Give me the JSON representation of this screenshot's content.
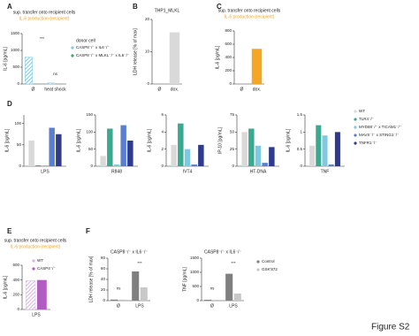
{
  "figure_label": "Figure S2",
  "chart_data": [
    {
      "type": "bar",
      "panel": "A",
      "title": "sup. transfer onto recipient cells",
      "subtitle": "IL-6 production (recipient)",
      "ylabel": "IL-6 [pg/mL]",
      "categories": [
        "Ø",
        "heat shock"
      ],
      "legend_title": "donor cell",
      "series": [
        {
          "name": "CASP8⁻/⁻ x IL6⁻/⁻",
          "color": "#7ec8e3",
          "hatch": true,
          "values": [
            800,
            30
          ]
        },
        {
          "name": "CASP8⁻/⁻ x MLKL⁻/⁻ x IL6⁻/⁻",
          "color": "#3aaa5c",
          "values": [
            5,
            5
          ]
        }
      ],
      "ylim": [
        0,
        1500
      ],
      "yticks": [
        0,
        500,
        1000,
        1500
      ],
      "annotations": [
        "***",
        "ns"
      ]
    },
    {
      "type": "bar",
      "panel": "B",
      "title": "THP1_MLKL",
      "ylabel": "LDH release [% of max]",
      "categories": [
        "Ø",
        "dox."
      ],
      "series": [
        {
          "color": "#d9d9d9",
          "values": [
            0,
            16
          ]
        }
      ],
      "ylim": [
        0,
        20
      ],
      "yticks": [
        0,
        10,
        20
      ]
    },
    {
      "type": "bar",
      "panel": "C",
      "title": "sup. transfer onto recipient cells",
      "subtitle": "IL-6 production (recipient)",
      "ylabel": "IL-6 [pg/mL]",
      "categories": [
        "Ø",
        "dox."
      ],
      "series": [
        {
          "color": "#f5a623",
          "values": [
            0,
            530
          ]
        }
      ],
      "ylim": [
        0,
        800
      ],
      "yticks": [
        0,
        200,
        400,
        600,
        800
      ]
    },
    {
      "type": "bar",
      "panel": "D",
      "ylabel": "IL-6 [pg/mL]",
      "categories": [
        "LPS"
      ],
      "series": [
        {
          "color": "#d9d9d9",
          "values": [
            60
          ]
        },
        {
          "color": "#3aaa8e",
          "values": [
            2
          ]
        },
        {
          "color": "#7ec8e3",
          "values": [
            2
          ]
        },
        {
          "color": "#5a7fd0",
          "values": [
            90
          ]
        },
        {
          "color": "#2e3a8c",
          "values": [
            75
          ]
        }
      ],
      "ylim": [
        0,
        120
      ],
      "yticks": [
        0,
        50,
        100
      ]
    },
    {
      "type": "bar",
      "ylabel": "IL-6 [pg/mL]",
      "categories": [
        "R848"
      ],
      "series": [
        {
          "color": "#d9d9d9",
          "values": [
            30
          ]
        },
        {
          "color": "#3aaa8e",
          "values": [
            110
          ]
        },
        {
          "color": "#7ec8e3",
          "values": [
            5
          ]
        },
        {
          "color": "#5a7fd0",
          "values": [
            120
          ]
        },
        {
          "color": "#2e3a8c",
          "values": [
            75
          ]
        }
      ],
      "ylim": [
        0,
        150
      ],
      "yticks": [
        0,
        50,
        100,
        150
      ]
    },
    {
      "type": "bar",
      "ylabel": "IL-6 [pg/mL]",
      "categories": [
        "IVT4"
      ],
      "series": [
        {
          "color": "#d9d9d9",
          "values": [
            2.5
          ]
        },
        {
          "color": "#3aaa8e",
          "values": [
            5
          ]
        },
        {
          "color": "#7ec8e3",
          "values": [
            2
          ]
        },
        {
          "color": "#5a7fd0",
          "values": [
            0.2
          ]
        },
        {
          "color": "#2e3a8c",
          "values": [
            2.5
          ]
        }
      ],
      "ylim": [
        0,
        6
      ],
      "yticks": [
        0,
        2,
        4,
        6
      ]
    },
    {
      "type": "bar",
      "ylabel": "IP-10 [pg/mL]",
      "categories": [
        "HT-DNA"
      ],
      "series": [
        {
          "color": "#d9d9d9",
          "values": [
            50
          ]
        },
        {
          "color": "#3aaa8e",
          "values": [
            55
          ]
        },
        {
          "color": "#7ec8e3",
          "values": [
            30
          ]
        },
        {
          "color": "#5a7fd0",
          "values": [
            5
          ]
        },
        {
          "color": "#2e3a8c",
          "values": [
            28
          ]
        }
      ],
      "ylim": [
        0,
        75
      ],
      "yticks": [
        0,
        25,
        50,
        75
      ]
    },
    {
      "type": "bar",
      "ylabel": "IL-6 [pg/mL]",
      "categories": [
        "TNF"
      ],
      "series": [
        {
          "name": "WT",
          "color": "#d9d9d9",
          "values": [
            0.6
          ]
        },
        {
          "name": "TLR4⁻/⁻",
          "color": "#3aaa8e",
          "values": [
            1.2
          ]
        },
        {
          "name": "MYD88⁻/⁻ x TICAM1⁻/⁻",
          "color": "#7ec8e3",
          "values": [
            0.9
          ]
        },
        {
          "name": "MAVS⁻/⁻ x STING1⁻/⁻",
          "color": "#5a7fd0",
          "values": [
            0.05
          ]
        },
        {
          "name": "TNFR1⁻/⁻",
          "color": "#2e3a8c",
          "values": [
            1.0
          ]
        }
      ],
      "ylim": [
        0,
        1.5
      ],
      "yticks": [
        0,
        0.5,
        1,
        1.5
      ]
    },
    {
      "type": "bar",
      "panel": "E",
      "title": "sup. transfer onto recipient cells",
      "subtitle": "IL-6 production (recipient)",
      "ylabel": "IL-6 [pg/mL]",
      "categories": [
        "LPS"
      ],
      "series": [
        {
          "name": "WT",
          "color": "#d8b4e2",
          "hatch": true,
          "values": [
            390
          ]
        },
        {
          "name": "CASP4⁻/⁻",
          "color": "#b05cc0",
          "values": [
            400
          ]
        }
      ],
      "ylim": [
        0,
        600
      ],
      "yticks": [
        0,
        200,
        400,
        600
      ]
    },
    {
      "type": "bar",
      "panel": "F",
      "title": "CASP8⁻/⁻ x IL6⁻/⁻",
      "ylabel": "LDH release [% of max]",
      "categories": [
        "Ø",
        "LPS"
      ],
      "series": [
        {
          "color": "#7f7f7f",
          "values": [
            2,
            55
          ]
        },
        {
          "color": "#c8c8c8",
          "values": [
            2,
            25
          ]
        }
      ],
      "ylim": [
        0,
        80
      ],
      "yticks": [
        0,
        20,
        40,
        60,
        80
      ],
      "annotations": [
        "ns",
        "***"
      ]
    },
    {
      "type": "bar",
      "title": "CASP8⁻/⁻ x IL6⁻/⁻",
      "ylabel": "TNF [pg/mL]",
      "categories": [
        "Ø",
        "LPS"
      ],
      "series": [
        {
          "name": "Control",
          "color": "#7f7f7f",
          "values": [
            30,
            950
          ]
        },
        {
          "name": "GSK'872",
          "color": "#c8c8c8",
          "values": [
            30,
            250
          ]
        }
      ],
      "ylim": [
        0,
        1500
      ],
      "yticks": [
        0,
        500,
        1000,
        1500
      ],
      "annotations": [
        "ns",
        "***"
      ]
    }
  ]
}
